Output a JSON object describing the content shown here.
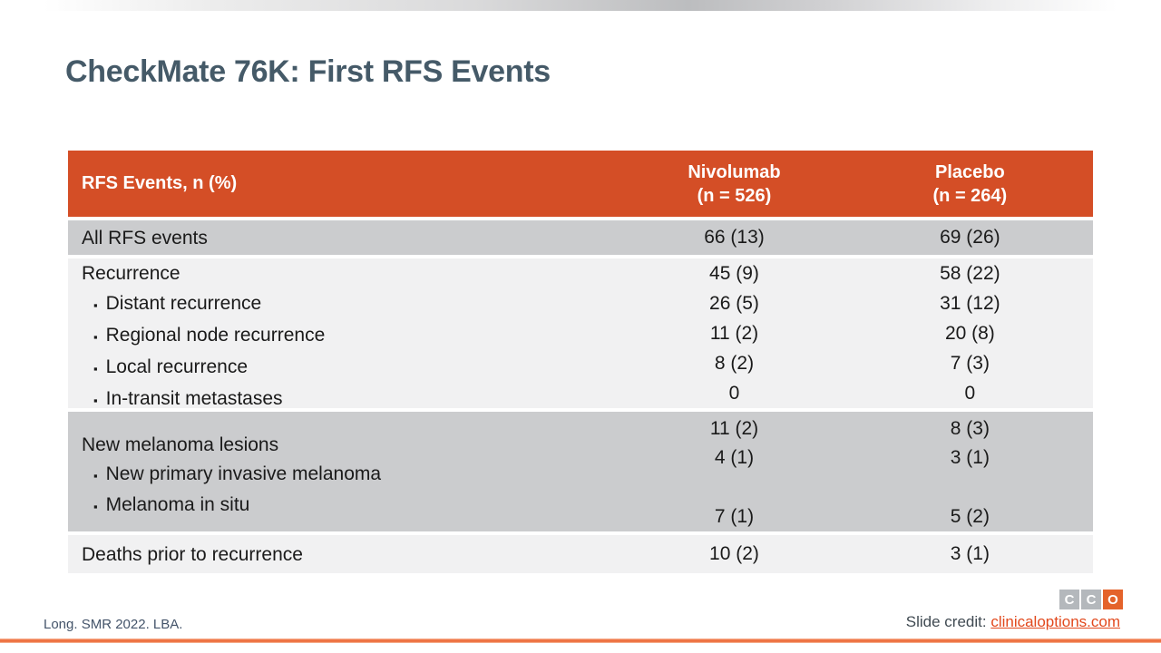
{
  "slide": {
    "title": "CheckMate 76K: First RFS Events",
    "citation": "Long. SMR 2022. LBA.",
    "credit_label": "Slide credit: ",
    "credit_link": "clinicaloptions.com"
  },
  "logo": {
    "letters": [
      "C",
      "C",
      "O"
    ]
  },
  "colors": {
    "header_bg": "#D44E26",
    "row_gray": "#CBCCCE",
    "row_light": "#F1F1F2",
    "title_text": "#455A68",
    "link_orange": "#E2491D",
    "logo_gray": "#B4B8BC",
    "logo_orange": "#E4632B",
    "bottom_line_orange": "#EE7040"
  },
  "table": {
    "bullet": "▪",
    "header": {
      "label": "RFS Events, n (%)",
      "nivolumab_name": "Nivolumab",
      "nivolumab_n": "(n = 526)",
      "placebo_name": "Placebo",
      "placebo_n": "(n = 264)"
    },
    "rows": [
      {
        "label": "All RFS events",
        "niv": "66 (13)",
        "pbo": "69 (26)"
      },
      {
        "label": "Recurrence",
        "niv": "45 (9)",
        "pbo": "58 (22)"
      },
      {
        "label": "Distant recurrence",
        "niv": "26 (5)",
        "pbo": "31 (12)"
      },
      {
        "label": "Regional node recurrence",
        "niv": "11 (2)",
        "pbo": "20 (8)"
      },
      {
        "label": "Local recurrence",
        "niv": "8 (2)",
        "pbo": "7 (3)"
      },
      {
        "label": "In-transit metastases",
        "niv": "0",
        "pbo": "0"
      },
      {
        "label": "New melanoma lesions",
        "niv": "11 (2)",
        "pbo": "8 (3)"
      },
      {
        "label": "New primary invasive melanoma",
        "niv": "4 (1)",
        "pbo": "3 (1)"
      },
      {
        "label": "Melanoma in situ",
        "niv": "7 (1)",
        "pbo": "5 (2)"
      },
      {
        "label": "Deaths prior to recurrence",
        "niv": "10 (2)",
        "pbo": "3 (1)"
      }
    ]
  },
  "chart_data": {
    "type": "table",
    "title": "CheckMate 76K: First RFS Events",
    "columns": [
      "RFS Events, n (%)",
      "Nivolumab (n = 526)",
      "Placebo (n = 264)"
    ],
    "rows": [
      [
        "All RFS events",
        "66 (13)",
        "69 (26)"
      ],
      [
        "Recurrence",
        "45 (9)",
        "58 (22)"
      ],
      [
        "Distant recurrence",
        "26 (5)",
        "31 (12)"
      ],
      [
        "Regional node recurrence",
        "11 (2)",
        "20 (8)"
      ],
      [
        "Local recurrence",
        "8 (2)",
        "7 (3)"
      ],
      [
        "In-transit metastases",
        "0",
        "0"
      ],
      [
        "New melanoma lesions",
        "11 (2)",
        "8 (3)"
      ],
      [
        "New primary invasive melanoma",
        "4 (1)",
        "3 (1)"
      ],
      [
        "Melanoma in situ",
        "7 (1)",
        "5 (2)"
      ],
      [
        "Deaths prior to recurrence",
        "10 (2)",
        "3 (1)"
      ]
    ]
  }
}
